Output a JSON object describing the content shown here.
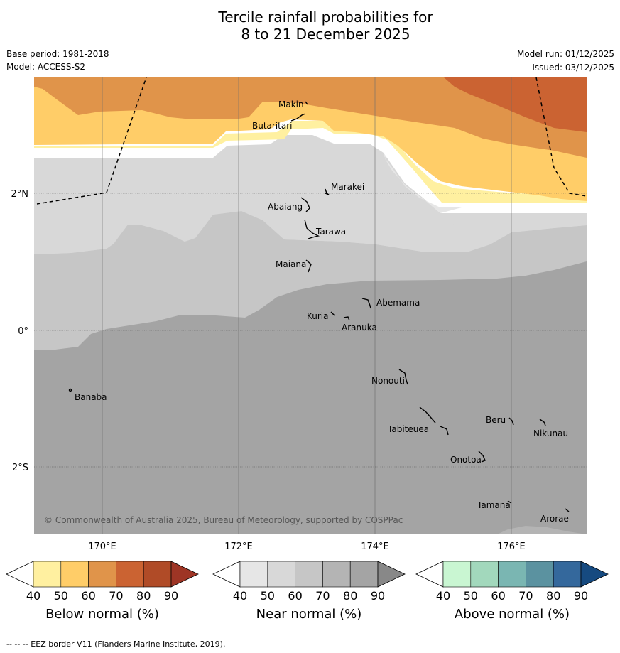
{
  "header": {
    "title_line1": "Tercile rainfall probabilities for",
    "title_line2": "8 to 21 December 2025",
    "base_period": "Base period: 1981-2018",
    "model": "Model: ACCESS-S2",
    "model_run": "Model run: 01/12/2025",
    "issued": "Issued: 03/12/2025"
  },
  "map": {
    "lat_labels": [
      "2°N",
      "0°",
      "2°S"
    ],
    "lon_labels": [
      "170°E",
      "172°E",
      "174°E",
      "176°E"
    ],
    "places": [
      "Makin",
      "Butaritari",
      "Marakei",
      "Abaiang",
      "Tarawa",
      "Maiana",
      "Abemama",
      "Kuria",
      "Aranuka",
      "Banaba",
      "Nonouti",
      "Beru",
      "Nikunau",
      "Tabiteuea",
      "Onotoa",
      "Tamana",
      "Arorae"
    ],
    "copyright": "© Commonwealth of Australia 2025, Bureau of Meteorology, supported by COSPPac"
  },
  "colorbars": [
    {
      "label": "Below normal (%)",
      "ticks": [
        "40",
        "50",
        "60",
        "70",
        "80",
        "90"
      ],
      "colors": [
        "#ffffff",
        "#fff0a0",
        "#ffcd68",
        "#e0944a",
        "#cb6332",
        "#b04b27",
        "#9e3525"
      ]
    },
    {
      "label": "Near normal (%)",
      "ticks": [
        "40",
        "50",
        "60",
        "70",
        "80",
        "90"
      ],
      "colors": [
        "#ffffff",
        "#e6e6e6",
        "#d8d8d8",
        "#c6c6c6",
        "#b4b4b4",
        "#a4a4a4",
        "#888888"
      ]
    },
    {
      "label": "Above normal (%)",
      "ticks": [
        "40",
        "50",
        "60",
        "70",
        "80",
        "90"
      ],
      "colors": [
        "#ffffff",
        "#c9f6d2",
        "#a2d8bc",
        "#7ab6b2",
        "#5b92a0",
        "#34689c",
        "#164a80"
      ]
    }
  ],
  "footer": {
    "eez_line": "--  --  -- EEZ border V11 (Flanders Marine Institute, 2019)."
  }
}
